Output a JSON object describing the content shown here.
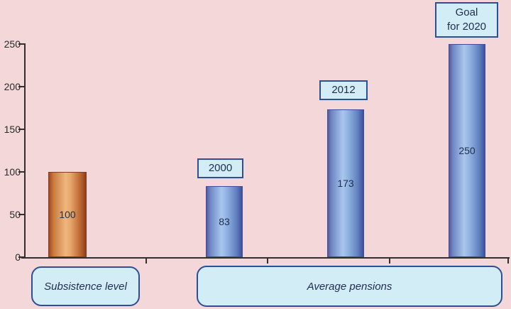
{
  "chart_data": {
    "type": "bar",
    "title": "",
    "xlabel": "",
    "ylabel": "",
    "ylim": [
      0,
      250
    ],
    "ytick_step": 50,
    "grid": false,
    "legend": "none",
    "yticks": [
      "0",
      "50",
      "100",
      "150",
      "200",
      "250"
    ],
    "categories": [
      "Subsistence level",
      "Average pensions"
    ],
    "bars": [
      {
        "group": "Subsistence level",
        "label": "",
        "value": 100,
        "color": "orange"
      },
      {
        "group": "Average pensions",
        "label": "2000",
        "value": 83,
        "color": "blue"
      },
      {
        "group": "Average pensions",
        "label": "2012",
        "value": 173,
        "color": "blue"
      },
      {
        "group": "Average pensions",
        "label": "Goal for 2020",
        "value": 250,
        "color": "blue"
      }
    ]
  },
  "callouts": {
    "y2000": "2000",
    "y2012": "2012",
    "goal": "Goal\nfor 2020"
  },
  "category_boxes": {
    "subsistence": "Subsistence level",
    "average": "Average pensions"
  },
  "colors": {
    "background": "#f3d7d9",
    "box_fill": "#d3edf6",
    "box_border": "#2e4f97",
    "axis": "#332f2f",
    "blue_bar_light": "#a9c6ec",
    "blue_bar_dark": "#3f4f9c",
    "orange_bar_light": "#f0b57f",
    "orange_bar_dark": "#8f3d1a",
    "text": "#1f2d50"
  }
}
